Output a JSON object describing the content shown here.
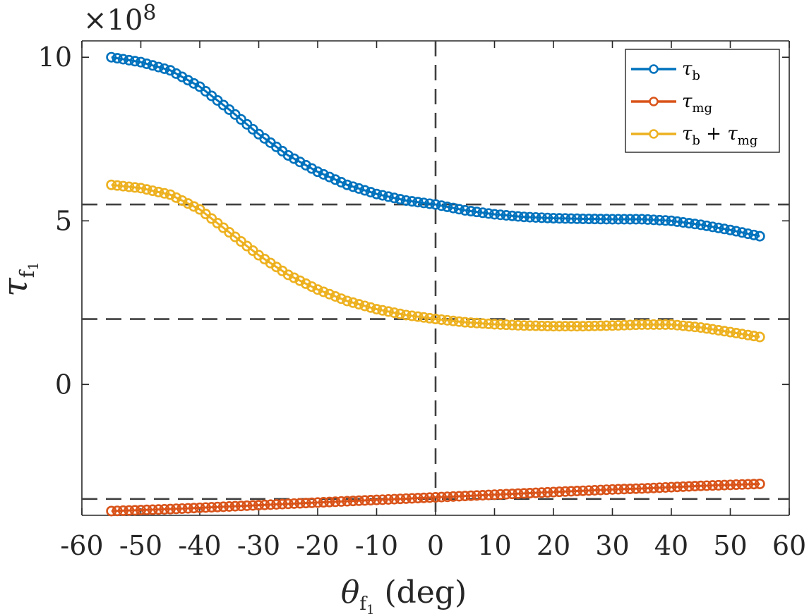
{
  "chart_data": {
    "type": "scatter",
    "title": "",
    "xlabel": "θf1 (deg)",
    "ylabel": "τf1",
    "y_exponent_label": "×10",
    "y_exponent_power": "8",
    "y_scale_factor": 100000000,
    "xlim": [
      -60,
      60
    ],
    "ylim": [
      -4,
      10.5
    ],
    "x_ticks": [
      -60,
      -50,
      -40,
      -30,
      -20,
      -10,
      0,
      10,
      20,
      30,
      40,
      50,
      60
    ],
    "x_tick_labels": [
      "-60",
      "-50",
      "-40",
      "-30",
      "-20",
      "-10",
      "0",
      "10",
      "20",
      "30",
      "40",
      "50",
      "60"
    ],
    "y_ticks": [
      0,
      5,
      10
    ],
    "y_tick_labels": [
      "0",
      "5",
      "10"
    ],
    "grid": false,
    "legend_position": "top-right",
    "reference_lines": {
      "vertical_x": [
        0
      ],
      "horizontal_y": [
        5.5,
        2.0,
        -3.5
      ]
    },
    "x": [
      -55,
      -50,
      -45,
      -40,
      -35,
      -30,
      -25,
      -20,
      -15,
      -10,
      -5,
      0,
      5,
      10,
      15,
      20,
      25,
      30,
      35,
      40,
      45,
      50,
      55
    ],
    "series": [
      {
        "name": "τb",
        "legend_main": "τ",
        "legend_sub": "b",
        "color": "#0072BD",
        "values": [
          10.0,
          9.85,
          9.6,
          9.1,
          8.4,
          7.65,
          7.0,
          6.5,
          6.1,
          5.82,
          5.62,
          5.5,
          5.32,
          5.2,
          5.12,
          5.08,
          5.06,
          5.05,
          5.05,
          5.0,
          4.88,
          4.72,
          4.53
        ]
      },
      {
        "name": "τmg",
        "legend_main": "τ",
        "legend_sub": "mg",
        "color": "#D95319",
        "values": [
          -3.87,
          -3.84,
          -3.81,
          -3.77,
          -3.73,
          -3.69,
          -3.65,
          -3.61,
          -3.57,
          -3.53,
          -3.49,
          -3.45,
          -3.41,
          -3.37,
          -3.33,
          -3.29,
          -3.25,
          -3.21,
          -3.18,
          -3.14,
          -3.1,
          -3.07,
          -3.04
        ]
      },
      {
        "name": "τb + τmg",
        "legend_main": "τ",
        "legend_sub": "b",
        "legend_mid": " + τ",
        "legend_sub2": "mg",
        "color": "#EDB120",
        "values": [
          6.1,
          6.0,
          5.8,
          5.35,
          4.65,
          3.95,
          3.35,
          2.9,
          2.55,
          2.3,
          2.12,
          2.0,
          1.9,
          1.84,
          1.8,
          1.78,
          1.78,
          1.8,
          1.83,
          1.83,
          1.74,
          1.6,
          1.45
        ]
      }
    ]
  },
  "axis_labels": {
    "x_main": "θ",
    "x_sub": "f",
    "x_subsub": "1",
    "x_unit": "(deg)",
    "y_main": "τ",
    "y_sub": "f",
    "y_subsub": "1"
  }
}
